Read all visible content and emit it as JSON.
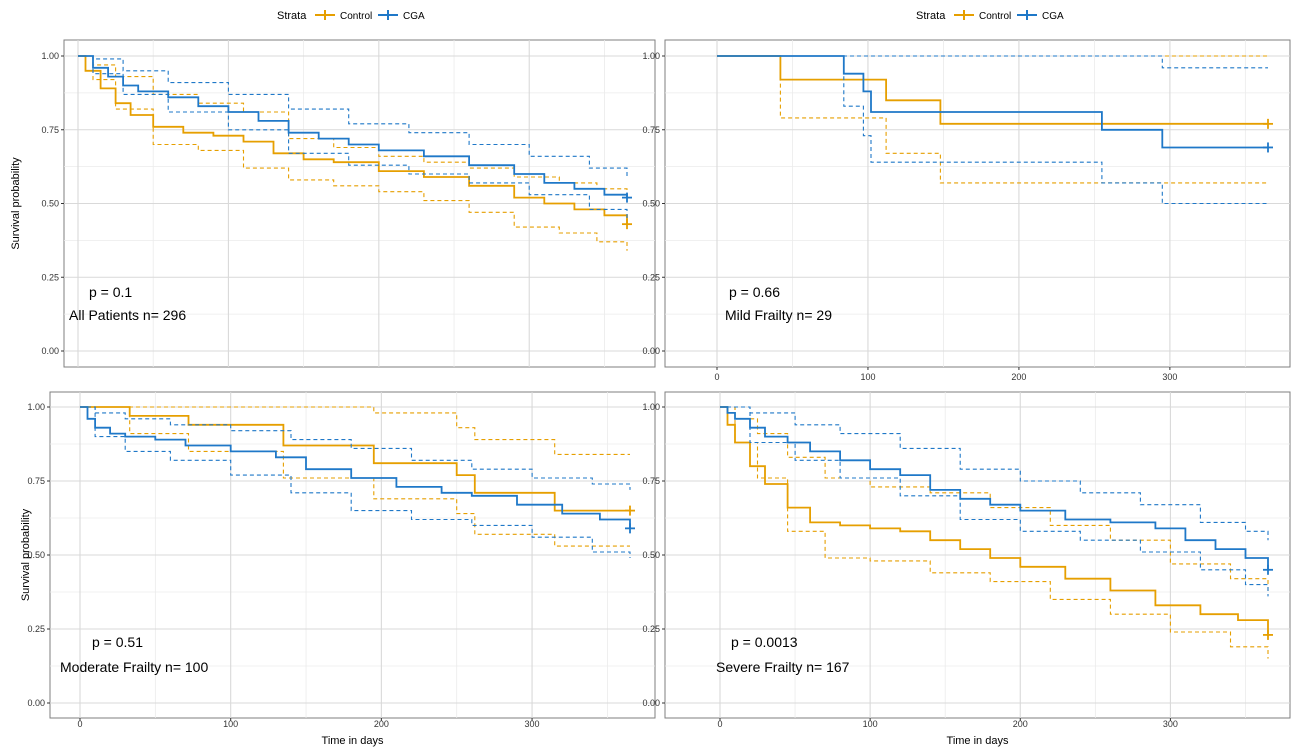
{
  "colors": {
    "control": "#E69F00",
    "cga": "#1F78C8",
    "grid_major": "#D9D9D9",
    "grid_minor": "#EBEBEB",
    "panel_border": "#7F7F7F"
  },
  "legend": {
    "title": "Strata",
    "entries": [
      "Control",
      "CGA"
    ]
  },
  "chart_data": [
    {
      "type": "line",
      "title": "",
      "xlabel": "",
      "ylabel": "Survival probability",
      "xlim": [
        0,
        370
      ],
      "ylim": [
        0,
        1
      ],
      "xticks": [],
      "yticks": [
        "0.00",
        "0.25",
        "0.50",
        "0.75",
        "1.00"
      ],
      "pvalue": "p = 0.1",
      "label": "All Patients n= 296",
      "series": [
        {
          "name": "Control",
          "x": [
            0,
            5,
            15,
            25,
            35,
            50,
            70,
            90,
            110,
            130,
            150,
            170,
            200,
            230,
            260,
            290,
            310,
            330,
            350,
            365
          ],
          "values": [
            1.0,
            0.95,
            0.89,
            0.84,
            0.8,
            0.76,
            0.74,
            0.73,
            0.71,
            0.67,
            0.65,
            0.64,
            0.61,
            0.59,
            0.56,
            0.52,
            0.5,
            0.48,
            0.46,
            0.43
          ],
          "censor": [
            365
          ]
        },
        {
          "name": "Control CI upper",
          "dashed": true,
          "x": [
            0,
            10,
            25,
            50,
            80,
            110,
            140,
            170,
            200,
            230,
            260,
            290,
            320,
            345,
            365
          ],
          "values": [
            1.0,
            0.97,
            0.93,
            0.87,
            0.84,
            0.81,
            0.72,
            0.69,
            0.66,
            0.64,
            0.62,
            0.59,
            0.57,
            0.55,
            0.53
          ]
        },
        {
          "name": "Control CI lower",
          "dashed": true,
          "x": [
            0,
            10,
            25,
            50,
            80,
            110,
            140,
            170,
            200,
            230,
            260,
            290,
            320,
            345,
            365
          ],
          "values": [
            1.0,
            0.92,
            0.82,
            0.7,
            0.68,
            0.62,
            0.58,
            0.56,
            0.54,
            0.51,
            0.47,
            0.42,
            0.4,
            0.37,
            0.34
          ]
        },
        {
          "name": "CGA",
          "x": [
            0,
            10,
            20,
            30,
            40,
            60,
            80,
            100,
            120,
            140,
            160,
            180,
            200,
            230,
            260,
            290,
            310,
            330,
            350,
            365
          ],
          "values": [
            1.0,
            0.96,
            0.93,
            0.9,
            0.88,
            0.86,
            0.83,
            0.81,
            0.78,
            0.74,
            0.72,
            0.7,
            0.68,
            0.66,
            0.63,
            0.6,
            0.57,
            0.55,
            0.53,
            0.52
          ],
          "censor": [
            365
          ]
        },
        {
          "name": "CGA CI upper",
          "dashed": true,
          "x": [
            0,
            10,
            30,
            60,
            100,
            140,
            180,
            220,
            260,
            300,
            340,
            365
          ],
          "values": [
            1.0,
            0.99,
            0.95,
            0.91,
            0.87,
            0.82,
            0.77,
            0.74,
            0.7,
            0.66,
            0.62,
            0.59
          ]
        },
        {
          "name": "CGA CI lower",
          "dashed": true,
          "x": [
            0,
            10,
            30,
            60,
            100,
            140,
            180,
            220,
            260,
            300,
            340,
            365
          ],
          "values": [
            1.0,
            0.94,
            0.87,
            0.81,
            0.75,
            0.67,
            0.63,
            0.6,
            0.57,
            0.53,
            0.48,
            0.45
          ]
        }
      ]
    },
    {
      "type": "line",
      "title": "",
      "xlabel": "",
      "ylabel": "",
      "xlim": [
        0,
        370
      ],
      "ylim": [
        0,
        1
      ],
      "xticks": [
        "0",
        "100",
        "200",
        "300"
      ],
      "yticks": [
        "0.00",
        "0.25",
        "0.50",
        "0.75",
        "1.00"
      ],
      "pvalue": "p = 0.66",
      "label": "Mild Frailty n= 29",
      "series": [
        {
          "name": "Control",
          "x": [
            0,
            42,
            42,
            112,
            112,
            148,
            148,
            365
          ],
          "values": [
            1.0,
            1.0,
            0.92,
            0.92,
            0.85,
            0.85,
            0.77,
            0.77
          ],
          "censor": [
            365
          ]
        },
        {
          "name": "Control CI upper",
          "dashed": true,
          "x": [
            0,
            365
          ],
          "values": [
            1.0,
            1.0
          ]
        },
        {
          "name": "Control CI lower",
          "dashed": true,
          "x": [
            0,
            42,
            42,
            112,
            112,
            148,
            148,
            365
          ],
          "values": [
            1.0,
            1.0,
            0.79,
            0.79,
            0.67,
            0.67,
            0.57,
            0.57
          ]
        },
        {
          "name": "CGA",
          "x": [
            0,
            84,
            84,
            97,
            97,
            102,
            102,
            255,
            255,
            295,
            295,
            365
          ],
          "values": [
            1.0,
            1.0,
            0.94,
            0.94,
            0.88,
            0.88,
            0.81,
            0.81,
            0.75,
            0.75,
            0.69,
            0.69
          ],
          "censor": [
            365
          ]
        },
        {
          "name": "CGA CI upper",
          "dashed": true,
          "x": [
            0,
            295,
            295,
            365
          ],
          "values": [
            1.0,
            1.0,
            0.96,
            0.96
          ]
        },
        {
          "name": "CGA CI lower",
          "dashed": true,
          "x": [
            0,
            84,
            84,
            97,
            97,
            102,
            102,
            255,
            255,
            295,
            295,
            365
          ],
          "values": [
            1.0,
            1.0,
            0.83,
            0.83,
            0.73,
            0.73,
            0.64,
            0.64,
            0.57,
            0.57,
            0.5,
            0.5
          ]
        }
      ]
    },
    {
      "type": "line",
      "title": "",
      "xlabel": "Time in days",
      "ylabel": "Survival probability",
      "xlim": [
        0,
        370
      ],
      "ylim": [
        0,
        1
      ],
      "xticks": [
        "0",
        "100",
        "200",
        "300"
      ],
      "yticks": [
        "0.00",
        "0.25",
        "0.50",
        "0.75",
        "1.00"
      ],
      "pvalue": "p = 0.51",
      "label": "Moderate Frailty n= 100",
      "series": [
        {
          "name": "Control",
          "x": [
            0,
            33,
            33,
            72,
            72,
            135,
            135,
            195,
            195,
            250,
            250,
            262,
            262,
            315,
            315,
            365
          ],
          "values": [
            1.0,
            1.0,
            0.97,
            0.97,
            0.94,
            0.94,
            0.87,
            0.87,
            0.81,
            0.81,
            0.77,
            0.77,
            0.71,
            0.71,
            0.65,
            0.65
          ],
          "censor": [
            365
          ]
        },
        {
          "name": "Control CI upper",
          "dashed": true,
          "x": [
            0,
            195,
            195,
            250,
            250,
            262,
            262,
            315,
            315,
            365
          ],
          "values": [
            1.0,
            1.0,
            0.98,
            0.98,
            0.93,
            0.93,
            0.89,
            0.89,
            0.84,
            0.84
          ]
        },
        {
          "name": "Control CI lower",
          "dashed": true,
          "x": [
            0,
            33,
            33,
            72,
            72,
            135,
            135,
            195,
            195,
            250,
            250,
            262,
            262,
            315,
            315,
            365
          ],
          "values": [
            1.0,
            1.0,
            0.91,
            0.91,
            0.85,
            0.85,
            0.76,
            0.76,
            0.69,
            0.69,
            0.64,
            0.64,
            0.57,
            0.57,
            0.53,
            0.53
          ]
        },
        {
          "name": "CGA",
          "x": [
            0,
            5,
            10,
            20,
            30,
            50,
            70,
            100,
            130,
            150,
            180,
            210,
            240,
            260,
            290,
            320,
            345,
            365
          ],
          "values": [
            1.0,
            0.96,
            0.93,
            0.91,
            0.9,
            0.89,
            0.87,
            0.85,
            0.83,
            0.79,
            0.76,
            0.73,
            0.71,
            0.7,
            0.67,
            0.64,
            0.62,
            0.59
          ],
          "censor": [
            365
          ]
        },
        {
          "name": "CGA CI upper",
          "dashed": true,
          "x": [
            0,
            10,
            30,
            60,
            100,
            140,
            180,
            220,
            260,
            300,
            340,
            365
          ],
          "values": [
            1.0,
            0.98,
            0.96,
            0.94,
            0.92,
            0.89,
            0.86,
            0.82,
            0.79,
            0.76,
            0.74,
            0.72
          ]
        },
        {
          "name": "CGA CI lower",
          "dashed": true,
          "x": [
            0,
            10,
            30,
            60,
            100,
            140,
            180,
            220,
            260,
            300,
            340,
            365
          ],
          "values": [
            1.0,
            0.9,
            0.85,
            0.82,
            0.77,
            0.71,
            0.65,
            0.62,
            0.6,
            0.56,
            0.51,
            0.49
          ]
        }
      ]
    },
    {
      "type": "line",
      "title": "",
      "xlabel": "Time in days",
      "ylabel": "",
      "xlim": [
        0,
        370
      ],
      "ylim": [
        0,
        1
      ],
      "xticks": [
        "0",
        "100",
        "200",
        "300"
      ],
      "yticks": [
        "0.00",
        "0.25",
        "0.50",
        "0.75",
        "1.00"
      ],
      "pvalue": "p = 0.0013",
      "label": "Severe Frailty n= 167",
      "series": [
        {
          "name": "Control",
          "x": [
            0,
            5,
            10,
            20,
            30,
            45,
            60,
            80,
            100,
            120,
            140,
            160,
            180,
            200,
            230,
            260,
            290,
            320,
            345,
            365
          ],
          "values": [
            1.0,
            0.94,
            0.88,
            0.8,
            0.74,
            0.66,
            0.61,
            0.6,
            0.59,
            0.58,
            0.55,
            0.52,
            0.49,
            0.46,
            0.42,
            0.38,
            0.33,
            0.3,
            0.28,
            0.23
          ],
          "censor": [
            365
          ]
        },
        {
          "name": "Control CI upper",
          "dashed": true,
          "x": [
            0,
            10,
            25,
            45,
            70,
            100,
            140,
            180,
            220,
            260,
            300,
            340,
            365
          ],
          "values": [
            1.0,
            0.96,
            0.91,
            0.83,
            0.76,
            0.73,
            0.71,
            0.66,
            0.6,
            0.55,
            0.47,
            0.42,
            0.37
          ]
        },
        {
          "name": "Control CI lower",
          "dashed": true,
          "x": [
            0,
            10,
            25,
            45,
            70,
            100,
            140,
            180,
            220,
            260,
            300,
            340,
            365
          ],
          "values": [
            1.0,
            0.88,
            0.76,
            0.58,
            0.49,
            0.48,
            0.44,
            0.41,
            0.35,
            0.3,
            0.24,
            0.19,
            0.15
          ]
        },
        {
          "name": "CGA",
          "x": [
            0,
            5,
            10,
            20,
            30,
            45,
            60,
            80,
            100,
            120,
            140,
            160,
            180,
            200,
            230,
            260,
            290,
            310,
            330,
            350,
            365
          ],
          "values": [
            1.0,
            0.98,
            0.96,
            0.93,
            0.9,
            0.88,
            0.85,
            0.82,
            0.79,
            0.77,
            0.72,
            0.69,
            0.67,
            0.65,
            0.62,
            0.61,
            0.59,
            0.55,
            0.52,
            0.49,
            0.45
          ],
          "censor": [
            365
          ]
        },
        {
          "name": "CGA CI upper",
          "dashed": true,
          "x": [
            0,
            20,
            50,
            80,
            120,
            160,
            200,
            240,
            280,
            320,
            350,
            365
          ],
          "values": [
            1.0,
            0.98,
            0.94,
            0.91,
            0.86,
            0.79,
            0.75,
            0.71,
            0.67,
            0.61,
            0.58,
            0.55
          ]
        },
        {
          "name": "CGA CI lower",
          "dashed": true,
          "x": [
            0,
            20,
            50,
            80,
            120,
            160,
            200,
            240,
            280,
            320,
            350,
            365
          ],
          "values": [
            1.0,
            0.88,
            0.82,
            0.76,
            0.7,
            0.62,
            0.58,
            0.55,
            0.51,
            0.45,
            0.4,
            0.36
          ]
        }
      ]
    }
  ]
}
